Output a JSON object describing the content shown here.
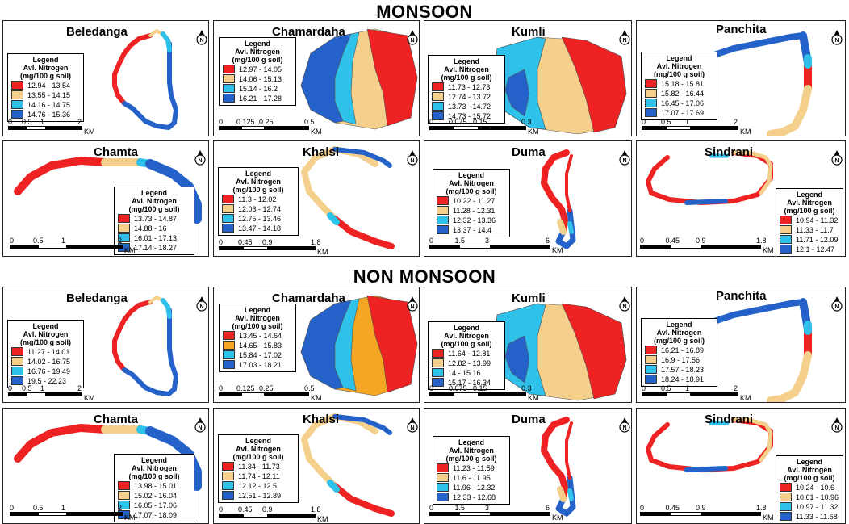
{
  "sections": [
    {
      "title": "MONSOON",
      "panels": [
        {
          "name": "Beledanga",
          "legend_title": "Legend",
          "legend_subtitle": "Avl. Nitrogen",
          "legend_unit": "(mg/100 g soil)",
          "classes": [
            {
              "label": "12.94 - 13.54",
              "color": "#ee2222"
            },
            {
              "label": "13.55 - 14.15",
              "color": "#f5d08c"
            },
            {
              "label": "14.16 - 14.75",
              "color": "#2ec1ea"
            },
            {
              "label": "14.76 - 15.36",
              "color": "#2462c9"
            }
          ],
          "scale": {
            "ticks": [
              "0",
              "0.5",
              "1",
              "2"
            ],
            "unit": "KM"
          }
        },
        {
          "name": "Chamardaha",
          "legend_title": "Legend",
          "legend_subtitle": "Avl. Nitrogen",
          "legend_unit": "(mg/100 g soil)",
          "classes": [
            {
              "label": "12.97 - 14.05",
              "color": "#ee2222"
            },
            {
              "label": "14.06 - 15.13",
              "color": "#f5d08c"
            },
            {
              "label": "15.14 - 16.2",
              "color": "#2ec1ea"
            },
            {
              "label": "16.21 - 17.28",
              "color": "#2462c9"
            }
          ],
          "scale": {
            "ticks": [
              "0",
              "0.125",
              "0.25",
              "0.5"
            ],
            "unit": "KM"
          }
        },
        {
          "name": "Kumli",
          "legend_title": "Legend",
          "legend_subtitle": "Avl. Nitrogen",
          "legend_unit": "(mg/100 g soil)",
          "classes": [
            {
              "label": "11.73 - 12.73",
              "color": "#ee2222"
            },
            {
              "label": "12.74 - 13.72",
              "color": "#f5d08c"
            },
            {
              "label": "13.73 - 14.72",
              "color": "#2ec1ea"
            },
            {
              "label": "14.73 - 15.72",
              "color": "#2462c9"
            }
          ],
          "scale": {
            "ticks": [
              "0",
              "0.075",
              "0.15",
              "0.3"
            ],
            "unit": "KM"
          }
        },
        {
          "name": "Panchita",
          "legend_title": "Legend",
          "legend_subtitle": "Avl. Nitrogen",
          "legend_unit": "(mg/100 g soil)",
          "classes": [
            {
              "label": "15.18 - 15.81",
              "color": "#ee2222"
            },
            {
              "label": "15.82 - 16.44",
              "color": "#f5d08c"
            },
            {
              "label": "16.45 - 17.06",
              "color": "#2ec1ea"
            },
            {
              "label": "17.07 - 17.69",
              "color": "#2462c9"
            }
          ],
          "scale": {
            "ticks": [
              "0",
              "0.5",
              "1",
              "2"
            ],
            "unit": "KM"
          }
        },
        {
          "name": "Chamta",
          "legend_title": "Legend",
          "legend_subtitle": "Avl. Nitrogen",
          "legend_unit": "(mg/100 g soil)",
          "classes": [
            {
              "label": "13.73 - 14.87",
              "color": "#ee2222"
            },
            {
              "label": "14.88 - 16",
              "color": "#f5d08c"
            },
            {
              "label": "16.01 - 17.13",
              "color": "#2ec1ea"
            },
            {
              "label": "17.14 - 18.27",
              "color": "#2462c9"
            }
          ],
          "scale": {
            "ticks": [
              "0",
              "0.5",
              "1",
              "2"
            ],
            "unit": "KM"
          }
        },
        {
          "name": "Khalsi",
          "legend_title": "Legend",
          "legend_subtitle": "Avl. Nitrogen",
          "legend_unit": "(mg/100 g soil)",
          "classes": [
            {
              "label": "11.3 - 12.02",
              "color": "#ee2222"
            },
            {
              "label": "12.03 - 12.74",
              "color": "#f5d08c"
            },
            {
              "label": "12.75 - 13.46",
              "color": "#2ec1ea"
            },
            {
              "label": "13.47 - 14.18",
              "color": "#2462c9"
            }
          ],
          "scale": {
            "ticks": [
              "0",
              "0.45",
              "0.9",
              "1.8"
            ],
            "unit": "KM"
          }
        },
        {
          "name": "Duma",
          "legend_title": "Legend",
          "legend_subtitle": "Avl. Nitrogen",
          "legend_unit": "(mg/100 g soil)",
          "classes": [
            {
              "label": "10.22 - 11.27",
              "color": "#ee2222"
            },
            {
              "label": "11.28 - 12.31",
              "color": "#f5d08c"
            },
            {
              "label": "12.32 - 13.36",
              "color": "#2ec1ea"
            },
            {
              "label": "13.37 - 14.4",
              "color": "#2462c9"
            }
          ],
          "scale": {
            "ticks": [
              "0",
              "1.5",
              "3",
              "6"
            ],
            "unit": "KM"
          }
        },
        {
          "name": "Sindrani",
          "legend_title": "Legend",
          "legend_subtitle": "Avl. Nitrogen",
          "legend_unit": "(mg/100 g soil)",
          "classes": [
            {
              "label": "10.94 - 11.32",
              "color": "#ee2222"
            },
            {
              "label": "11.33 - 11.7",
              "color": "#f5d08c"
            },
            {
              "label": "11.71 - 12.09",
              "color": "#2ec1ea"
            },
            {
              "label": "12.1 - 12.47",
              "color": "#2462c9"
            }
          ],
          "scale": {
            "ticks": [
              "0",
              "0.45",
              "0.9",
              "1.8"
            ],
            "unit": "KM"
          }
        }
      ]
    },
    {
      "title": "NON MONSOON",
      "panels": [
        {
          "name": "Beledanga",
          "legend_title": "Legend",
          "legend_subtitle": "Avl. Nitrogen",
          "legend_unit": "(mg/100 g soil)",
          "classes": [
            {
              "label": "11.27 - 14.01",
              "color": "#ee2222"
            },
            {
              "label": "14.02 - 16.75",
              "color": "#f5d08c"
            },
            {
              "label": "16.76 - 19.49",
              "color": "#2ec1ea"
            },
            {
              "label": "19.5 - 22.23",
              "color": "#2462c9"
            }
          ],
          "scale": {
            "ticks": [
              "0",
              "0.5",
              "1",
              "2"
            ],
            "unit": "KM"
          }
        },
        {
          "name": "Chamardaha",
          "legend_title": "Legend",
          "legend_subtitle": "Avl. Nitrogen",
          "legend_unit": "(mg/100 g soil)",
          "classes": [
            {
              "label": "13.45 - 14.64",
              "color": "#ee2222"
            },
            {
              "label": "14.65 - 15.83",
              "color": "#f5a623"
            },
            {
              "label": "15.84 - 17.02",
              "color": "#2ec1ea"
            },
            {
              "label": "17.03 - 18.21",
              "color": "#2462c9"
            }
          ],
          "scale": {
            "ticks": [
              "0",
              "0.125",
              "0.25",
              "0.5"
            ],
            "unit": "KM"
          }
        },
        {
          "name": "Kumli",
          "legend_title": "Legend",
          "legend_subtitle": "Avl. Nitrogen",
          "legend_unit": "(mg/100 g soil)",
          "classes": [
            {
              "label": "11.64 - 12.81",
              "color": "#ee2222"
            },
            {
              "label": "12.82 - 13.99",
              "color": "#f5d08c"
            },
            {
              "label": "14 - 15.16",
              "color": "#2ec1ea"
            },
            {
              "label": "15.17 - 16.34",
              "color": "#2462c9"
            }
          ],
          "scale": {
            "ticks": [
              "0",
              "0.075",
              "0.15",
              "0.3"
            ],
            "unit": "KM"
          }
        },
        {
          "name": "Panchita",
          "legend_title": "Legend",
          "legend_subtitle": "Avl. Nitrogen",
          "legend_unit": "(mg/100 g soil)",
          "classes": [
            {
              "label": "16.21 - 16.89",
              "color": "#ee2222"
            },
            {
              "label": "16.9 - 17.56",
              "color": "#f5d08c"
            },
            {
              "label": "17.57 - 18.23",
              "color": "#2ec1ea"
            },
            {
              "label": "18.24 - 18.91",
              "color": "#2462c9"
            }
          ],
          "scale": {
            "ticks": [
              "0",
              "0.5",
              "1",
              "2"
            ],
            "unit": "KM"
          }
        },
        {
          "name": "Chamta",
          "legend_title": "Legend",
          "legend_subtitle": "Avl. Nitrogen",
          "legend_unit": "(mg/100 g soil)",
          "classes": [
            {
              "label": "13.98 - 15.01",
              "color": "#ee2222"
            },
            {
              "label": "15.02 - 16.04",
              "color": "#f5d08c"
            },
            {
              "label": "16.05 - 17.06",
              "color": "#2ec1ea"
            },
            {
              "label": "17.07 - 18.09",
              "color": "#2462c9"
            }
          ],
          "scale": {
            "ticks": [
              "0",
              "0.5",
              "1",
              "2"
            ],
            "unit": "KM"
          }
        },
        {
          "name": "Khalsi",
          "legend_title": "Legend",
          "legend_subtitle": "Avl. Nitrogen",
          "legend_unit": "(mg/100 g soil)",
          "classes": [
            {
              "label": "11.34 - 11.73",
              "color": "#ee2222"
            },
            {
              "label": "11.74 - 12.11",
              "color": "#f5d08c"
            },
            {
              "label": "12.12 - 12.5",
              "color": "#2ec1ea"
            },
            {
              "label": "12.51 - 12.89",
              "color": "#2462c9"
            }
          ],
          "scale": {
            "ticks": [
              "0",
              "0.45",
              "0.9",
              "1.8"
            ],
            "unit": "KM"
          }
        },
        {
          "name": "Duma",
          "legend_title": "Legend",
          "legend_subtitle": "Avl. Nitrogen",
          "legend_unit": "(mg/100 g soil)",
          "classes": [
            {
              "label": "11.23 - 11.59",
              "color": "#ee2222"
            },
            {
              "label": "11.6 - 11.95",
              "color": "#f5d08c"
            },
            {
              "label": "11.96 - 12.32",
              "color": "#2ec1ea"
            },
            {
              "label": "12.33 - 12.68",
              "color": "#2462c9"
            }
          ],
          "scale": {
            "ticks": [
              "0",
              "1.5",
              "3",
              "6"
            ],
            "unit": "KM"
          }
        },
        {
          "name": "Sindrani",
          "legend_title": "Legend",
          "legend_subtitle": "Avl. Nitrogen",
          "legend_unit": "(mg/100 g soil)",
          "classes": [
            {
              "label": "10.24 - 10.6",
              "color": "#ee2222"
            },
            {
              "label": "10.61 - 10.96",
              "color": "#f5d08c"
            },
            {
              "label": "10.97 - 11.32",
              "color": "#2ec1ea"
            },
            {
              "label": "11.33 - 11.68",
              "color": "#2462c9"
            }
          ],
          "scale": {
            "ticks": [
              "0",
              "0.45",
              "0.9",
              "1.8"
            ],
            "unit": "KM"
          }
        }
      ]
    }
  ],
  "north_arrow": "north-arrow-icon",
  "colors": {
    "red": "#ee2222",
    "beige": "#f5d08c",
    "orange": "#f5a623",
    "cyan": "#2ec1ea",
    "blue": "#2462c9"
  }
}
